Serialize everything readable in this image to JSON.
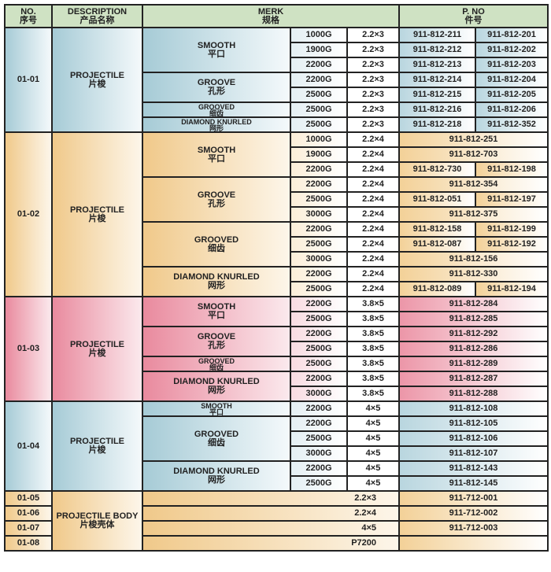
{
  "header": {
    "no": "NO.",
    "no_cn": "序号",
    "desc": "DESCRIPTION",
    "desc_cn": "产品名称",
    "merk": "MERK",
    "merk_cn": "规格",
    "pno": "P. NO",
    "pno_cn": "件号"
  },
  "theme_colors": {
    "blue": "#a6cbd6",
    "orange": "#f0c98a",
    "pink": "#e98a9e",
    "header": "#cfe2c3"
  },
  "groups": [
    {
      "no": "01-01",
      "desc": "PROJECTILE",
      "desc_cn": "片梭",
      "theme": "blue",
      "types": [
        {
          "name": "SMOOTH",
          "name_cn": "平口",
          "rows": [
            {
              "weight": "1000G",
              "size": "2.2×3",
              "pno": [
                "911-812-211",
                "911-812-201"
              ]
            },
            {
              "weight": "1900G",
              "size": "2.2×3",
              "pno": [
                "911-812-212",
                "911-812-202"
              ]
            },
            {
              "weight": "2200G",
              "size": "2.2×3",
              "pno": [
                "911-812-213",
                "911-812-203"
              ]
            }
          ]
        },
        {
          "name": "GROOVE",
          "name_cn": "孔形",
          "rows": [
            {
              "weight": "2200G",
              "size": "2.2×3",
              "pno": [
                "911-812-214",
                "911-812-204"
              ]
            },
            {
              "weight": "2500G",
              "size": "2.2×3",
              "pno": [
                "911-812-215",
                "911-812-205"
              ]
            }
          ]
        },
        {
          "name": "GROOVED",
          "name_cn": "细齿",
          "rows": [
            {
              "weight": "2500G",
              "size": "2.2×3",
              "pno": [
                "911-812-216",
                "911-812-206"
              ]
            }
          ]
        },
        {
          "name": "DIAMOND KNURLED",
          "name_cn": "网形",
          "rows": [
            {
              "weight": "2500G",
              "size": "2.2×3",
              "pno": [
                "911-812-218",
                "911-812-352"
              ]
            }
          ]
        }
      ]
    },
    {
      "no": "01-02",
      "desc": "PROJECTILE",
      "desc_cn": "片梭",
      "theme": "orange",
      "types": [
        {
          "name": "SMOOTH",
          "name_cn": "平口",
          "rows": [
            {
              "weight": "1000G",
              "size": "2.2×4",
              "pno": [
                "911-812-251"
              ]
            },
            {
              "weight": "1900G",
              "size": "2.2×4",
              "pno": [
                "911-812-703"
              ]
            },
            {
              "weight": "2200G",
              "size": "2.2×4",
              "pno": [
                "911-812-730",
                "911-812-198"
              ]
            }
          ]
        },
        {
          "name": "GROOVE",
          "name_cn": "孔形",
          "rows": [
            {
              "weight": "2200G",
              "size": "2.2×4",
              "pno": [
                "911-812-354"
              ]
            },
            {
              "weight": "2500G",
              "size": "2.2×4",
              "pno": [
                "911-812-051",
                "911-812-197"
              ]
            },
            {
              "weight": "3000G",
              "size": "2.2×4",
              "pno": [
                "911-812-375"
              ]
            }
          ]
        },
        {
          "name": "GROOVED",
          "name_cn": "细齿",
          "rows": [
            {
              "weight": "2200G",
              "size": "2.2×4",
              "pno": [
                "911-812-158",
                "911-812-199"
              ]
            },
            {
              "weight": "2500G",
              "size": "2.2×4",
              "pno": [
                "911-812-087",
                "911-812-192"
              ]
            },
            {
              "weight": "3000G",
              "size": "2.2×4",
              "pno": [
                "911-812-156"
              ]
            }
          ]
        },
        {
          "name": "DIAMOND KNURLED",
          "name_cn": "网形",
          "rows": [
            {
              "weight": "2200G",
              "size": "2.2×4",
              "pno": [
                "911-812-330"
              ]
            },
            {
              "weight": "2500G",
              "size": "2.2×4",
              "pno": [
                "911-812-089",
                "911-812-194"
              ]
            }
          ]
        }
      ]
    },
    {
      "no": "01-03",
      "desc": "PROJECTILE",
      "desc_cn": "片梭",
      "theme": "pink",
      "types": [
        {
          "name": "SMOOTH",
          "name_cn": "平口",
          "rows": [
            {
              "weight": "2200G",
              "size": "3.8×5",
              "pno": [
                "911-812-284"
              ]
            },
            {
              "weight": "2500G",
              "size": "3.8×5",
              "pno": [
                "911-812-285"
              ]
            }
          ]
        },
        {
          "name": "GROOVE",
          "name_cn": "孔形",
          "rows": [
            {
              "weight": "2200G",
              "size": "3.8×5",
              "pno": [
                "911-812-292"
              ]
            },
            {
              "weight": "2500G",
              "size": "3.8×5",
              "pno": [
                "911-812-286"
              ]
            }
          ]
        },
        {
          "name": "GROOVED",
          "name_cn": "细齿",
          "rows": [
            {
              "weight": "2500G",
              "size": "3.8×5",
              "pno": [
                "911-812-289"
              ]
            }
          ]
        },
        {
          "name": "DIAMOND KNURLED",
          "name_cn": "网形",
          "rows": [
            {
              "weight": "2200G",
              "size": "3.8×5",
              "pno": [
                "911-812-287"
              ]
            },
            {
              "weight": "3000G",
              "size": "3.8×5",
              "pno": [
                "911-812-288"
              ]
            }
          ]
        }
      ]
    },
    {
      "no": "01-04",
      "desc": "PROJECTILE",
      "desc_cn": "片梭",
      "theme": "blue",
      "types": [
        {
          "name": "SMOOTH",
          "name_cn": "平口",
          "rows": [
            {
              "weight": "2200G",
              "size": "4×5",
              "pno": [
                "911-812-108"
              ]
            }
          ]
        },
        {
          "name": "GROOVED",
          "name_cn": "细齿",
          "rows": [
            {
              "weight": "2200G",
              "size": "4×5",
              "pno": [
                "911-812-105"
              ]
            },
            {
              "weight": "2500G",
              "size": "4×5",
              "pno": [
                "911-812-106"
              ]
            },
            {
              "weight": "3000G",
              "size": "4×5",
              "pno": [
                "911-812-107"
              ]
            }
          ]
        },
        {
          "name": "DIAMOND KNURLED",
          "name_cn": "网形",
          "rows": [
            {
              "weight": "2200G",
              "size": "4×5",
              "pno": [
                "911-812-143"
              ]
            },
            {
              "weight": "2500G",
              "size": "4×5",
              "pno": [
                "911-812-145"
              ]
            }
          ]
        }
      ]
    }
  ],
  "body": {
    "desc": "PROJECTILE BODY",
    "desc_cn": "片梭壳体",
    "theme": "orange",
    "rows": [
      {
        "no": "01-05",
        "spec": "2.2×3",
        "pno": "911-712-001"
      },
      {
        "no": "01-06",
        "spec": "2.2×4",
        "pno": "911-712-002"
      },
      {
        "no": "01-07",
        "spec": "4×5",
        "pno": "911-712-003"
      },
      {
        "no": "01-08",
        "spec": "P7200",
        "pno": ""
      }
    ]
  }
}
